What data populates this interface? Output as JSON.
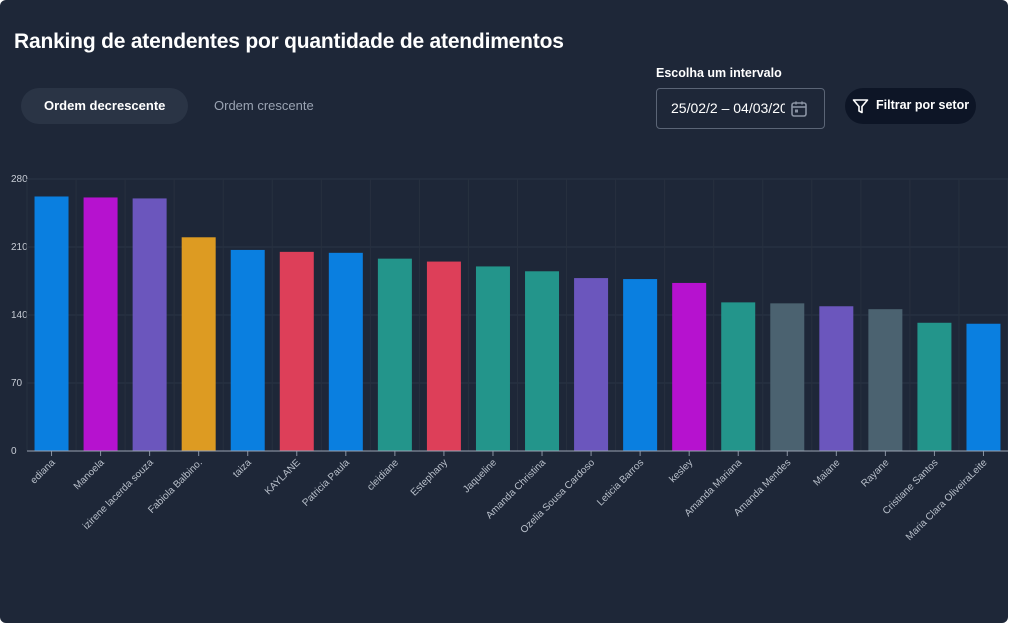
{
  "header": {
    "title": "Ranking de atendentes por quantidade de atendimentos"
  },
  "sort_toggle": {
    "desc_label": "Ordem decrescente",
    "asc_label": "Ordem crescente",
    "selected": "desc"
  },
  "date_range": {
    "label": "Escolha um intervalo",
    "value": "25/02/2 – 04/03/20",
    "icon": "calendar-icon"
  },
  "filter": {
    "label": "Filtrar por setor",
    "icon": "filter-icon"
  },
  "chart_data": {
    "type": "bar",
    "categories": [
      "ediana",
      "Manoela",
      "izirene lacerda souza",
      "Fabiola Balbino.",
      "taiza",
      "KAYLANE",
      "Patricia Paula",
      "cleidiane",
      "Estephany",
      "Jaqueline",
      "Amanda Christina",
      "Ozelia Sousa Cardoso",
      "Leticia Barros",
      "kesley",
      "Amanda Mariana",
      "Amanda Mendes",
      "Maiane",
      "Rayane",
      "Cristiane Santos",
      "Maria Clara OliveiraLeite"
    ],
    "values": [
      262,
      261,
      260,
      220,
      207,
      205,
      204,
      198,
      195,
      190,
      185,
      178,
      177,
      173,
      153,
      152,
      149,
      146,
      132,
      131
    ],
    "colors": [
      "#0a7fe0",
      "#b612cf",
      "#6b56bd",
      "#dd9b22",
      "#0a7fe0",
      "#dd3f59",
      "#0a7fe0",
      "#23958b",
      "#dd3f59",
      "#23958b",
      "#23958b",
      "#6b56bd",
      "#0a7fe0",
      "#b612cf",
      "#23958b",
      "#4b6270",
      "#6b56bd",
      "#4b6270",
      "#23958b",
      "#0a7fe0"
    ],
    "ylim": [
      0,
      280
    ],
    "yticks": [
      0,
      70,
      140,
      210,
      280
    ],
    "grid": true,
    "title": "",
    "xlabel": "",
    "ylabel": ""
  }
}
